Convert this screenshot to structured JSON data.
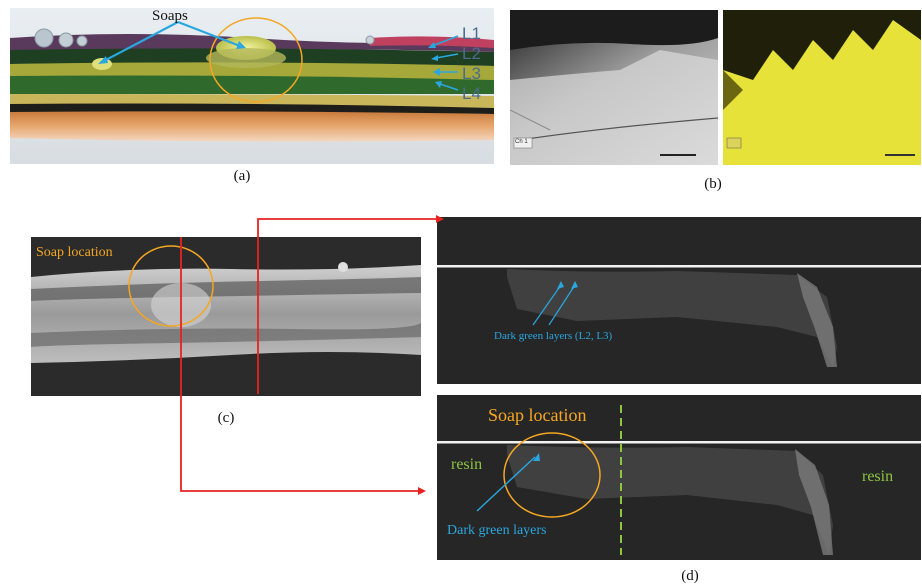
{
  "panel_a": {
    "caption": "(a)",
    "soaps_label": "Soaps",
    "layer_labels": [
      "L1",
      "L2",
      "L3",
      "L4"
    ]
  },
  "panel_b": {
    "caption": "(b)",
    "sem_label": "Ch 1"
  },
  "panel_c": {
    "caption": "(c)",
    "soap_location_label": "Soap location"
  },
  "panel_d": {
    "caption": "(d)",
    "top_annotation": "Dark green layers (L2, L3)",
    "bottom_soap_label": "Soap location",
    "resin_left": "resin",
    "resin_right": "resin",
    "bottom_annotation": "Dark green layers"
  },
  "colors": {
    "annotation_blue": "#2aa7e0",
    "soap_orange": "#f5a623",
    "resin_green": "#8dc63f",
    "connector_red": "#e8231f",
    "layer_label_blue": "#4a6c8c",
    "edx_yellow": "#e6e23a"
  }
}
